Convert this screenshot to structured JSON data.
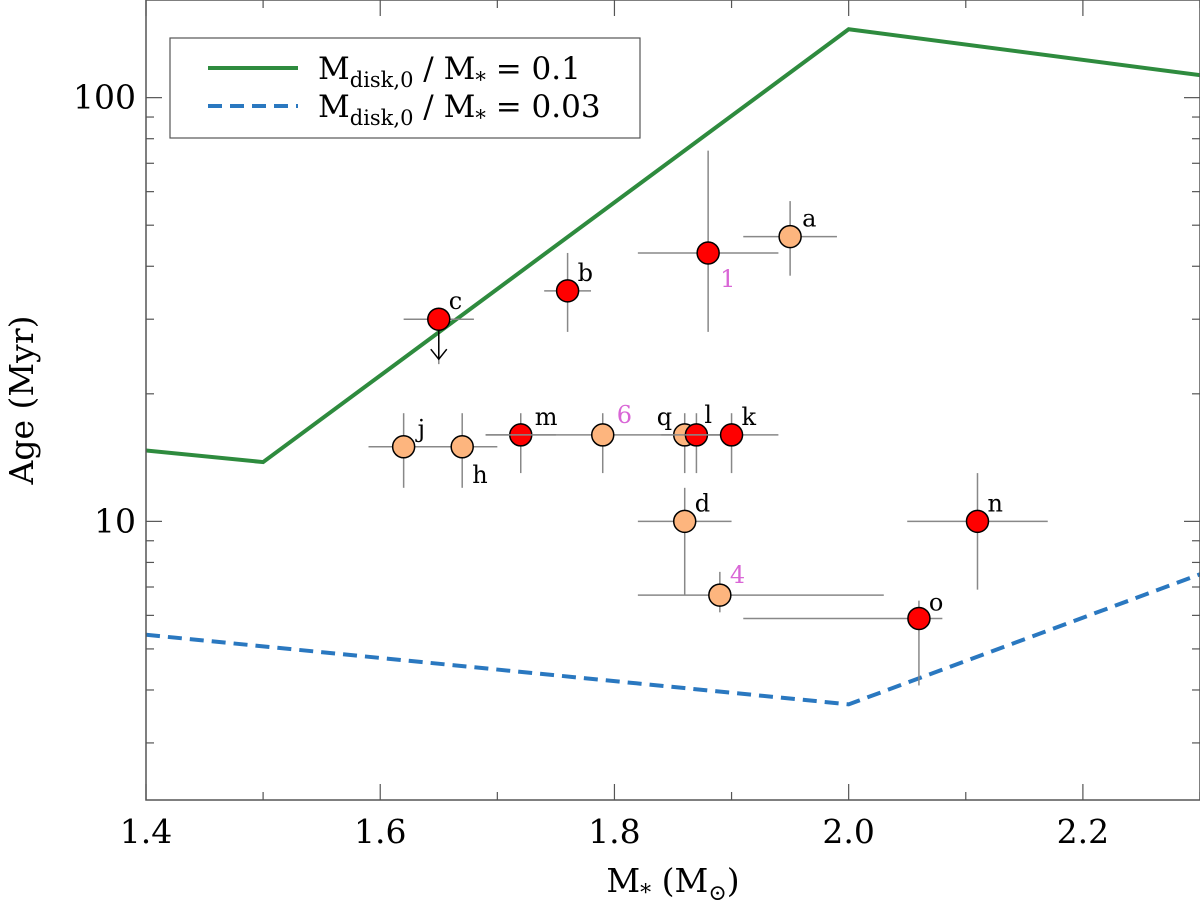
{
  "chart_data": {
    "type": "scatter",
    "xlabel": "M",
    "xlabel_sub": "*",
    "xlabel_unit_open": " (M",
    "xlabel_unit_sub": "⊙",
    "xlabel_unit_close": ")",
    "ylabel": "Age (Myr)",
    "xlim": [
      1.4,
      2.3
    ],
    "ylim": [
      2.2,
      170
    ],
    "yscale": "log",
    "x_ticks": [
      {
        "value": 1.4,
        "label": "1.4"
      },
      {
        "value": 1.6,
        "label": "1.6"
      },
      {
        "value": 1.8,
        "label": "1.8"
      },
      {
        "value": 2.0,
        "label": "2.0"
      },
      {
        "value": 2.2,
        "label": "2.2"
      }
    ],
    "y_ticks": [
      {
        "value": 10,
        "label": "10"
      },
      {
        "value": 100,
        "label": "100"
      }
    ],
    "legend": [
      {
        "label_main": "M",
        "label_sub": "disk,0",
        "label_rest": " / M",
        "label_sub2": "*",
        "label_end": " = 0.1",
        "color": "#2e8b3e",
        "style": "solid"
      },
      {
        "label_main": "M",
        "label_sub": "disk,0",
        "label_rest": " / M",
        "label_sub2": "*",
        "label_end": " = 0.03",
        "color": "#2a78c0",
        "style": "dashed"
      }
    ],
    "series": [
      {
        "name": "M_disk,0 / M* = 0.1",
        "color": "#2e8b3e",
        "style": "solid",
        "x": [
          1.4,
          1.5,
          2.0,
          2.3
        ],
        "y": [
          14.7,
          13.8,
          145,
          113
        ]
      },
      {
        "name": "M_disk,0 / M* = 0.03",
        "color": "#2a78c0",
        "style": "dashed",
        "x": [
          1.4,
          2.0,
          2.3
        ],
        "y": [
          5.4,
          3.7,
          7.5
        ]
      }
    ],
    "points": [
      {
        "label": "a",
        "x": 1.95,
        "y": 47,
        "xerr": [
          0.04,
          0.04
        ],
        "yerr": [
          38,
          57
        ],
        "color": "#fdb57e",
        "label_color": "#000000",
        "dx": 12,
        "dy": -10
      },
      {
        "label": "b",
        "x": 1.76,
        "y": 35,
        "xerr": [
          0.02,
          0.02
        ],
        "yerr": [
          28,
          43
        ],
        "color": "#ff0000",
        "label_color": "#000000",
        "dx": 10,
        "dy": -10
      },
      {
        "label": "c",
        "x": 1.65,
        "y": 30,
        "xerr": [
          0.03,
          0.03
        ],
        "yerr": [
          23.5,
          30
        ],
        "color": "#ff0000",
        "label_color": "#000000",
        "dx": 10,
        "dy": -10,
        "upper_limit": true
      },
      {
        "label": "1",
        "x": 1.88,
        "y": 43,
        "xerr": [
          0.06,
          0.06
        ],
        "yerr": [
          28,
          75
        ],
        "color": "#ff0000",
        "label_color": "#d966d6",
        "dx": 12,
        "dy": 34
      },
      {
        "label": "j",
        "x": 1.62,
        "y": 15,
        "xerr": [
          0.03,
          0.03
        ],
        "yerr": [
          12,
          18
        ],
        "color": "#fdb57e",
        "label_color": "#000000",
        "dx": 14,
        "dy": -10
      },
      {
        "label": "h",
        "x": 1.67,
        "y": 15,
        "xerr": [
          0.03,
          0.03
        ],
        "yerr": [
          12,
          18
        ],
        "color": "#fdb57e",
        "label_color": "#000000",
        "dx": 10,
        "dy": 36
      },
      {
        "label": "m",
        "x": 1.72,
        "y": 16,
        "xerr": [
          0.03,
          0.03
        ],
        "yerr": [
          13,
          18
        ],
        "color": "#ff0000",
        "label_color": "#000000",
        "dx": 14,
        "dy": -10
      },
      {
        "label": "6",
        "x": 1.79,
        "y": 16,
        "xerr": [
          0.1,
          0.1
        ],
        "yerr": [
          13,
          18
        ],
        "color": "#fdb57e",
        "label_color": "#d966d6",
        "dx": 14,
        "dy": -12
      },
      {
        "label": "q",
        "x": 1.86,
        "y": 16,
        "xerr": [
          0.02,
          0.02
        ],
        "yerr": [
          13,
          18
        ],
        "color": "#fdb57e",
        "label_color": "#000000",
        "dx": -28,
        "dy": -10
      },
      {
        "label": "l",
        "x": 1.87,
        "y": 16,
        "xerr": [
          0.02,
          0.02
        ],
        "yerr": [
          13,
          18
        ],
        "color": "#ff0000",
        "label_color": "#000000",
        "dx": 8,
        "dy": -12
      },
      {
        "label": "k",
        "x": 1.9,
        "y": 16,
        "xerr": [
          0.04,
          0.04
        ],
        "yerr": [
          13,
          18
        ],
        "color": "#ff0000",
        "label_color": "#000000",
        "dx": 10,
        "dy": -10
      },
      {
        "label": "d",
        "x": 1.86,
        "y": 10,
        "xerr": [
          0.04,
          0.04
        ],
        "yerr": [
          6.7,
          12
        ],
        "color": "#fdb57e",
        "label_color": "#000000",
        "dx": 10,
        "dy": -10
      },
      {
        "label": "4",
        "x": 1.89,
        "y": 6.7,
        "xerr": [
          0.07,
          0.14
        ],
        "yerr": [
          6.1,
          7.6
        ],
        "color": "#fdb57e",
        "label_color": "#d966d6",
        "dx": 10,
        "dy": -12
      },
      {
        "label": "n",
        "x": 2.11,
        "y": 10,
        "xerr": [
          0.06,
          0.06
        ],
        "yerr": [
          6.9,
          13
        ],
        "color": "#ff0000",
        "label_color": "#000000",
        "dx": 10,
        "dy": -10
      },
      {
        "label": "o",
        "x": 2.06,
        "y": 5.9,
        "xerr": [
          0.15,
          0.02
        ],
        "yerr": [
          4.1,
          6.5
        ],
        "color": "#ff0000",
        "label_color": "#000000",
        "dx": 10,
        "dy": -8
      }
    ]
  }
}
